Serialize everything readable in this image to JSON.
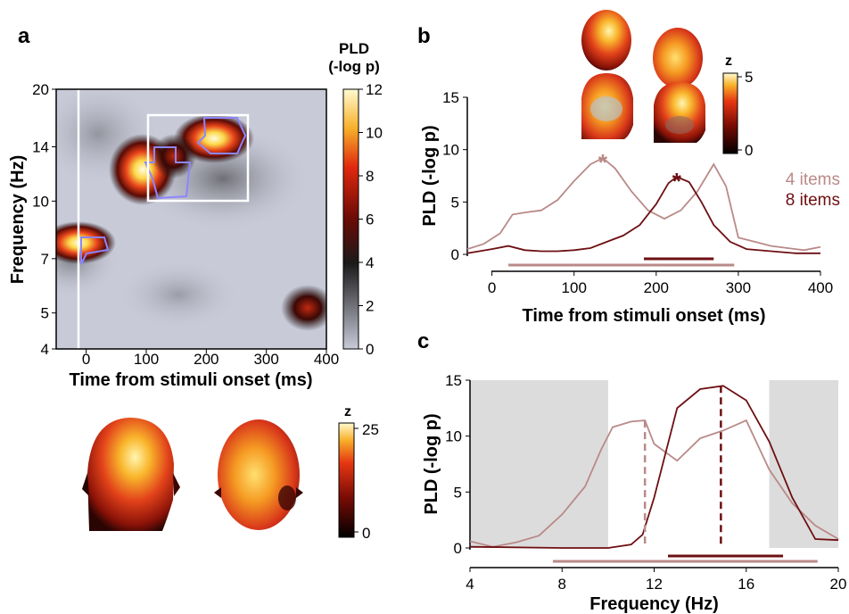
{
  "panel_labels": {
    "a": "a",
    "b": "b",
    "c": "c"
  },
  "colors": {
    "four_items": "#b98a88",
    "eight_items": "#6e0f12",
    "heat_bg": "#c8cad8",
    "roi_outline": "#8c86ff"
  },
  "panel_a": {
    "ylabel": "Frequency (Hz)",
    "xlabel": "Time from stimuli onset (ms)",
    "colorbar_title_line1": "PLD",
    "colorbar_title_line2": "(-log p)",
    "colorbar_ticks": [
      "12",
      "10",
      "8",
      "6",
      "4",
      "2",
      "0"
    ],
    "yticks": [
      "20",
      "14",
      "10",
      "7",
      "5",
      "4"
    ],
    "xticks": [
      "0",
      "100",
      "200",
      "300",
      "400"
    ],
    "topo_colorbar_title": "z",
    "topo_colorbar_ticks": [
      "25",
      "0"
    ]
  },
  "panel_b": {
    "topo_colorbar_title": "z",
    "topo_colorbar_ticks": [
      "5",
      "0"
    ]
  },
  "chart_data": [
    {
      "type": "heatmap",
      "title": "",
      "xlabel": "Time from stimuli onset (ms)",
      "ylabel": "Frequency (Hz)",
      "xlim": [
        -50,
        400
      ],
      "ylim": [
        4,
        20
      ],
      "color_range": [
        0,
        12
      ],
      "blobs": [
        {
          "t": 150,
          "f": 12.0,
          "value": 12
        },
        {
          "t": 230,
          "f": 15.0,
          "value": 12
        },
        {
          "t": 0,
          "f": 7.5,
          "value": 11
        },
        {
          "t": 380,
          "f": 5.0,
          "value": 6
        }
      ],
      "roi_box": {
        "t": [
          115,
          275
        ],
        "f": [
          10,
          17
        ]
      }
    },
    {
      "type": "line",
      "xlabel": "Time from stimuli onset (ms)",
      "ylabel": "PLD (-log p)",
      "xlim": [
        -30,
        400
      ],
      "ylim": [
        0,
        15
      ],
      "xticks": [
        "0",
        "100",
        "200",
        "300",
        "400"
      ],
      "yticks": [
        "0",
        "5",
        "10",
        "15"
      ],
      "series": [
        {
          "name": "4 items",
          "x": [
            -30,
            -10,
            10,
            25,
            40,
            60,
            80,
            100,
            120,
            135,
            150,
            170,
            190,
            210,
            230,
            250,
            270,
            285,
            300,
            320,
            340,
            360,
            380,
            400
          ],
          "y": [
            0.5,
            1.0,
            2.0,
            3.8,
            4.0,
            4.2,
            5.2,
            7.0,
            8.6,
            9.2,
            8.2,
            6.0,
            4.2,
            3.4,
            4.2,
            6.0,
            8.6,
            6.5,
            1.6,
            1.2,
            0.8,
            0.6,
            0.4,
            0.7
          ]
        },
        {
          "name": "8 items",
          "x": [
            -30,
            0,
            20,
            40,
            60,
            80,
            100,
            120,
            140,
            160,
            180,
            200,
            215,
            225,
            240,
            255,
            270,
            290,
            310,
            340,
            370,
            400
          ],
          "y": [
            0.1,
            0.5,
            0.8,
            0.4,
            0.3,
            0.3,
            0.4,
            0.6,
            1.2,
            1.8,
            2.8,
            4.8,
            6.8,
            7.4,
            6.9,
            5.0,
            2.8,
            1.2,
            0.5,
            0.3,
            0.1,
            0.1
          ]
        }
      ],
      "peak_markers": [
        {
          "series": "4 items",
          "x": 135,
          "y": 9.2
        },
        {
          "series": "8 items",
          "x": 225,
          "y": 7.4
        }
      ],
      "significance_bars": [
        {
          "series": "4 items",
          "x": [
            20,
            295
          ]
        },
        {
          "series": "8 items",
          "x": [
            185,
            270
          ]
        }
      ]
    },
    {
      "type": "line",
      "xlabel": "Frequency (Hz)",
      "ylabel": "PLD (-log p)",
      "xlim": [
        4,
        20
      ],
      "ylim": [
        0,
        15
      ],
      "xticks": [
        "4",
        "8",
        "12",
        "16",
        "20"
      ],
      "yticks": [
        "0",
        "5",
        "10",
        "15"
      ],
      "shaded_regions": [
        [
          4,
          10
        ],
        [
          17,
          20
        ]
      ],
      "series": [
        {
          "name": "4 items",
          "x": [
            4,
            5,
            6,
            7,
            8,
            9,
            9.7,
            10.2,
            11,
            11.6,
            12,
            13,
            14,
            15,
            16,
            17,
            18,
            19,
            20
          ],
          "y": [
            0.6,
            0.1,
            0.5,
            1.1,
            3.0,
            5.5,
            8.8,
            10.8,
            11.3,
            11.4,
            9.3,
            7.8,
            9.8,
            10.5,
            11.4,
            7.0,
            4.0,
            2.0,
            0.8
          ]
        },
        {
          "name": "8 items",
          "x": [
            4,
            8,
            10,
            11,
            11.5,
            12,
            13,
            14,
            15,
            16,
            17,
            18,
            19,
            20
          ],
          "y": [
            0.1,
            0.0,
            0.0,
            0.3,
            1.2,
            4.5,
            12.5,
            14.2,
            14.5,
            13.2,
            9.5,
            4.5,
            0.8,
            0.7
          ]
        }
      ],
      "peak_lines": [
        {
          "series": "4 items",
          "x": 11.6,
          "y": 11.4
        },
        {
          "series": "8 items",
          "x": 14.9,
          "y": 14.5
        }
      ],
      "significance_bars": [
        {
          "series": "4 items",
          "x": [
            7.6,
            19.1
          ]
        },
        {
          "series": "8 items",
          "x": [
            12.6,
            17.6
          ]
        }
      ]
    }
  ]
}
